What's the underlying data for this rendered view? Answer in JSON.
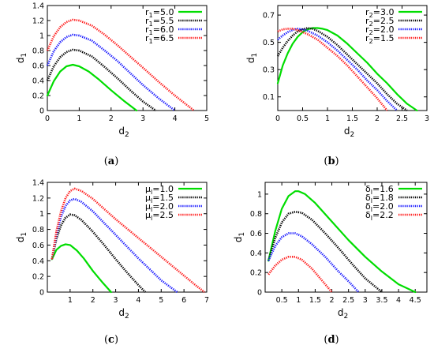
{
  "colors": {
    "green": "#00dd00",
    "black": "#000000",
    "blue": "#1a1aff",
    "red": "#ff1a1a"
  },
  "chart_data": [
    {
      "type": "line",
      "panel_label": "(a)",
      "xlabel": "d",
      "xlabel_sub": "2",
      "ylabel": "d",
      "ylabel_sub": "1",
      "xlim": [
        0,
        5
      ],
      "ylim": [
        0,
        1.4
      ],
      "xticks": [
        0,
        1,
        2,
        3,
        4,
        5
      ],
      "yticks": [
        0,
        0.2,
        0.4,
        0.6,
        0.8,
        1,
        1.2,
        1.4
      ],
      "ytick_labels": [
        "0",
        "0.2",
        "0.4",
        "0.6",
        "0.8",
        "1",
        "1.2",
        "1.4"
      ],
      "xtick_labels": [
        "0",
        "1",
        "2",
        "3",
        "4",
        "5"
      ],
      "legend_position": "top-right",
      "series": [
        {
          "name_sym": "r",
          "name_sub": "1",
          "name_val": "=5.0",
          "color": "green",
          "style": "solid",
          "x": [
            0,
            0.2,
            0.4,
            0.6,
            0.8,
            1.0,
            1.3,
            1.6,
            2.0,
            2.4,
            2.8
          ],
          "y": [
            0.2,
            0.39,
            0.52,
            0.59,
            0.61,
            0.59,
            0.52,
            0.42,
            0.27,
            0.13,
            0
          ]
        },
        {
          "name_sym": "r",
          "name_sub": "1",
          "name_val": "=5.5",
          "color": "black",
          "style": "dotted",
          "x": [
            0,
            0.2,
            0.4,
            0.6,
            0.8,
            1.0,
            1.4,
            1.8,
            2.2,
            2.6,
            3.0,
            3.4
          ],
          "y": [
            0.4,
            0.59,
            0.71,
            0.78,
            0.81,
            0.8,
            0.72,
            0.58,
            0.43,
            0.27,
            0.12,
            0
          ]
        },
        {
          "name_sym": "r",
          "name_sub": "1",
          "name_val": "=6.0",
          "color": "blue",
          "style": "dotted",
          "x": [
            0,
            0.2,
            0.4,
            0.6,
            0.8,
            1.0,
            1.4,
            1.8,
            2.2,
            2.6,
            3.0,
            3.5,
            4.0
          ],
          "y": [
            0.6,
            0.79,
            0.91,
            0.98,
            1.01,
            1.0,
            0.93,
            0.8,
            0.66,
            0.5,
            0.34,
            0.16,
            0
          ]
        },
        {
          "name_sym": "r",
          "name_sub": "1",
          "name_val": "=6.5",
          "color": "red",
          "style": "dotted",
          "x": [
            0,
            0.2,
            0.4,
            0.6,
            0.8,
            1.0,
            1.4,
            1.8,
            2.2,
            2.6,
            3.0,
            3.5,
            4.0,
            4.6
          ],
          "y": [
            0.8,
            0.99,
            1.11,
            1.18,
            1.21,
            1.2,
            1.13,
            1.01,
            0.87,
            0.72,
            0.57,
            0.38,
            0.2,
            0
          ]
        }
      ]
    },
    {
      "type": "line",
      "panel_label": "(b)",
      "xlabel": "d",
      "xlabel_sub": "2",
      "ylabel": "d",
      "ylabel_sub": "1",
      "xlim": [
        0,
        3
      ],
      "ylim": [
        0,
        0.77
      ],
      "xticks": [
        0,
        0.5,
        1,
        1.5,
        2,
        2.5,
        3
      ],
      "xtick_labels": [
        "0",
        "0.5",
        "1",
        "1.5",
        "2",
        "2.5",
        "3"
      ],
      "yticks": [
        0.1,
        0.3,
        0.5,
        0.7
      ],
      "ytick_labels": [
        "0.1",
        "0.3",
        "0.5",
        "0.7"
      ],
      "legend_position": "top-right",
      "series": [
        {
          "name_sym": "r",
          "name_sub": "2",
          "name_val": "=3.0",
          "color": "green",
          "style": "solid",
          "x": [
            0,
            0.1,
            0.2,
            0.3,
            0.4,
            0.5,
            0.6,
            0.7,
            0.8,
            0.9,
            1.0,
            1.2,
            1.4,
            1.6,
            1.8,
            2.0,
            2.2,
            2.4,
            2.6,
            2.8
          ],
          "y": [
            0.2,
            0.33,
            0.42,
            0.49,
            0.54,
            0.575,
            0.595,
            0.605,
            0.605,
            0.6,
            0.59,
            0.55,
            0.49,
            0.42,
            0.35,
            0.27,
            0.2,
            0.12,
            0.05,
            0
          ]
        },
        {
          "name_sym": "r",
          "name_sub": "2",
          "name_val": "=2.5",
          "color": "black",
          "style": "dotted",
          "x": [
            0,
            0.1,
            0.2,
            0.3,
            0.4,
            0.5,
            0.6,
            0.7,
            0.8,
            1.0,
            1.2,
            1.4,
            1.6,
            1.8,
            2.0,
            2.2,
            2.4,
            2.6
          ],
          "y": [
            0.4,
            0.46,
            0.51,
            0.55,
            0.58,
            0.595,
            0.605,
            0.6,
            0.585,
            0.54,
            0.48,
            0.41,
            0.34,
            0.27,
            0.2,
            0.12,
            0.05,
            0
          ]
        },
        {
          "name_sym": "r",
          "name_sub": "2",
          "name_val": "=2.0",
          "color": "blue",
          "style": "dotted",
          "x": [
            0,
            0.1,
            0.2,
            0.3,
            0.4,
            0.5,
            0.6,
            0.8,
            1.0,
            1.2,
            1.4,
            1.6,
            1.8,
            2.0,
            2.2,
            2.4
          ],
          "y": [
            0.52,
            0.55,
            0.575,
            0.59,
            0.6,
            0.595,
            0.585,
            0.55,
            0.5,
            0.44,
            0.37,
            0.3,
            0.22,
            0.15,
            0.07,
            0
          ]
        },
        {
          "name_sym": "r",
          "name_sub": "2",
          "name_val": "=1.5",
          "color": "red",
          "style": "dotted",
          "x": [
            0,
            0.1,
            0.2,
            0.3,
            0.4,
            0.6,
            0.8,
            1.0,
            1.2,
            1.4,
            1.6,
            1.8,
            2.0,
            2.2
          ],
          "y": [
            0.58,
            0.595,
            0.6,
            0.6,
            0.59,
            0.56,
            0.52,
            0.46,
            0.4,
            0.33,
            0.25,
            0.17,
            0.09,
            0
          ]
        }
      ]
    },
    {
      "type": "line",
      "panel_label": "(c)",
      "xlabel": "d",
      "xlabel_sub": "2",
      "ylabel": "d",
      "ylabel_sub": "1",
      "xlim": [
        0,
        7
      ],
      "ylim": [
        0,
        1.4
      ],
      "xticks": [
        1,
        2,
        3,
        4,
        5,
        6,
        7
      ],
      "xtick_labels": [
        "1",
        "2",
        "3",
        "4",
        "5",
        "6",
        "7"
      ],
      "yticks": [
        0,
        0.2,
        0.4,
        0.6,
        0.8,
        1,
        1.2,
        1.4
      ],
      "ytick_labels": [
        "0",
        "0.2",
        "0.4",
        "0.6",
        "0.8",
        "1",
        "1.2",
        "1.4"
      ],
      "legend_position": "top-right",
      "series": [
        {
          "name_sym": "μ",
          "name_sub": "l",
          "name_val": "=1.0",
          "color": "green",
          "style": "solid",
          "x": [
            0.2,
            0.4,
            0.6,
            0.8,
            1.0,
            1.3,
            1.6,
            2.0,
            2.4,
            2.8
          ],
          "y": [
            0.42,
            0.54,
            0.59,
            0.61,
            0.6,
            0.53,
            0.43,
            0.27,
            0.13,
            0
          ]
        },
        {
          "name_sym": "μ",
          "name_sub": "l",
          "name_val": "=1.5",
          "color": "black",
          "style": "dotted",
          "x": [
            0.2,
            0.4,
            0.6,
            0.8,
            1.0,
            1.2,
            1.5,
            2.0,
            2.5,
            3.0,
            3.5,
            4.0,
            4.3
          ],
          "y": [
            0.42,
            0.68,
            0.85,
            0.95,
            0.99,
            0.98,
            0.92,
            0.77,
            0.6,
            0.42,
            0.25,
            0.09,
            0
          ]
        },
        {
          "name_sym": "μ",
          "name_sub": "l",
          "name_val": "=2.0",
          "color": "blue",
          "style": "dotted",
          "x": [
            0.2,
            0.4,
            0.6,
            0.8,
            1.0,
            1.2,
            1.5,
            2.0,
            2.5,
            3.0,
            3.5,
            4.0,
            4.5,
            5.0,
            5.7
          ],
          "y": [
            0.42,
            0.74,
            0.96,
            1.1,
            1.17,
            1.19,
            1.15,
            1.03,
            0.88,
            0.73,
            0.58,
            0.43,
            0.29,
            0.15,
            0
          ]
        },
        {
          "name_sym": "μ",
          "name_sub": "l",
          "name_val": "=2.5",
          "color": "red",
          "style": "dotted",
          "x": [
            0.2,
            0.4,
            0.6,
            0.8,
            1.0,
            1.2,
            1.5,
            2.0,
            2.5,
            3.0,
            3.5,
            4.0,
            4.5,
            5.0,
            5.5,
            6.0,
            6.5,
            6.9
          ],
          "y": [
            0.42,
            0.78,
            1.03,
            1.2,
            1.29,
            1.32,
            1.29,
            1.19,
            1.06,
            0.93,
            0.81,
            0.69,
            0.57,
            0.45,
            0.33,
            0.21,
            0.09,
            0
          ]
        }
      ]
    },
    {
      "type": "line",
      "panel_label": "(d)",
      "xlabel": "d",
      "xlabel_sub": "2",
      "ylabel": "d",
      "ylabel_sub": "1",
      "xlim": [
        0,
        4.85
      ],
      "ylim": [
        0,
        1.12
      ],
      "xticks": [
        0.5,
        1,
        1.5,
        2,
        2.5,
        3,
        3.5,
        4,
        4.5
      ],
      "xtick_labels": [
        "0.5",
        "1",
        "1.5",
        "2",
        "2.5",
        "3",
        "3.5",
        "4",
        "4.5"
      ],
      "yticks": [
        0,
        0.2,
        0.4,
        0.6,
        0.8,
        1
      ],
      "ytick_labels": [
        "0",
        "0.2",
        "0.4",
        "0.6",
        "0.8",
        "1"
      ],
      "legend_position": "top-right",
      "series": [
        {
          "name_sym": "δ",
          "name_sub": "l",
          "name_val": "=1.6",
          "color": "green",
          "style": "solid",
          "x": [
            0.1,
            0.3,
            0.5,
            0.7,
            0.9,
            1.0,
            1.2,
            1.5,
            2.0,
            2.5,
            3.0,
            3.5,
            4.0,
            4.5
          ],
          "y": [
            0.32,
            0.62,
            0.85,
            0.98,
            1.03,
            1.03,
            1.0,
            0.91,
            0.72,
            0.53,
            0.36,
            0.21,
            0.08,
            0
          ]
        },
        {
          "name_sym": "δ",
          "name_sub": "l",
          "name_val": "=1.8",
          "color": "black",
          "style": "dotted",
          "x": [
            0.1,
            0.3,
            0.5,
            0.7,
            0.9,
            1.1,
            1.4,
            1.8,
            2.2,
            2.6,
            3.0,
            3.5
          ],
          "y": [
            0.32,
            0.55,
            0.71,
            0.8,
            0.82,
            0.81,
            0.74,
            0.6,
            0.45,
            0.29,
            0.14,
            0
          ]
        },
        {
          "name_sym": "δ",
          "name_sub": "l",
          "name_val": "=2.0",
          "color": "blue",
          "style": "dotted",
          "x": [
            0.1,
            0.3,
            0.5,
            0.7,
            0.9,
            1.1,
            1.4,
            1.8,
            2.2,
            2.5,
            2.8
          ],
          "y": [
            0.32,
            0.47,
            0.56,
            0.6,
            0.6,
            0.57,
            0.49,
            0.36,
            0.21,
            0.11,
            0
          ]
        },
        {
          "name_sym": "δ",
          "name_sub": "l",
          "name_val": "=2.2",
          "color": "red",
          "style": "dotted",
          "x": [
            0.1,
            0.3,
            0.5,
            0.7,
            0.9,
            1.1,
            1.4,
            1.7,
            2.0
          ],
          "y": [
            0.18,
            0.27,
            0.33,
            0.36,
            0.36,
            0.33,
            0.24,
            0.12,
            0
          ]
        }
      ]
    }
  ]
}
